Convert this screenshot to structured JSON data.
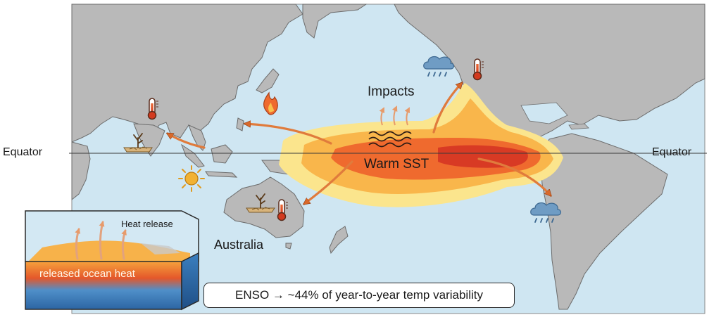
{
  "labels": {
    "equator_left": "Equator",
    "equator_right": "Equator",
    "impacts": "Impacts",
    "warm_sst": "Warm SST",
    "australia": "Australia",
    "heat_release": "Heat release",
    "ocean_heat": "released ocean heat",
    "stat": "ENSO → ~44% of year-to-year temp variability"
  },
  "colors": {
    "ocean": "#cfe6f2",
    "land": "#b9b9b9",
    "land_edge": "#6c6c6c",
    "sst_outer": "#fbe58d",
    "sst_mid": "#f9b64b",
    "sst_inner": "#ef6a2e",
    "sst_core": "#d83a24",
    "arrow": "#e07b3c",
    "rain_cloud": "#6f9cc4",
    "sun": "#f2b233"
  },
  "icons": [
    "thermometer-icon",
    "fire-icon",
    "drought-icon",
    "sun-icon",
    "rain-cloud-icon",
    "heat-wave-icon"
  ]
}
